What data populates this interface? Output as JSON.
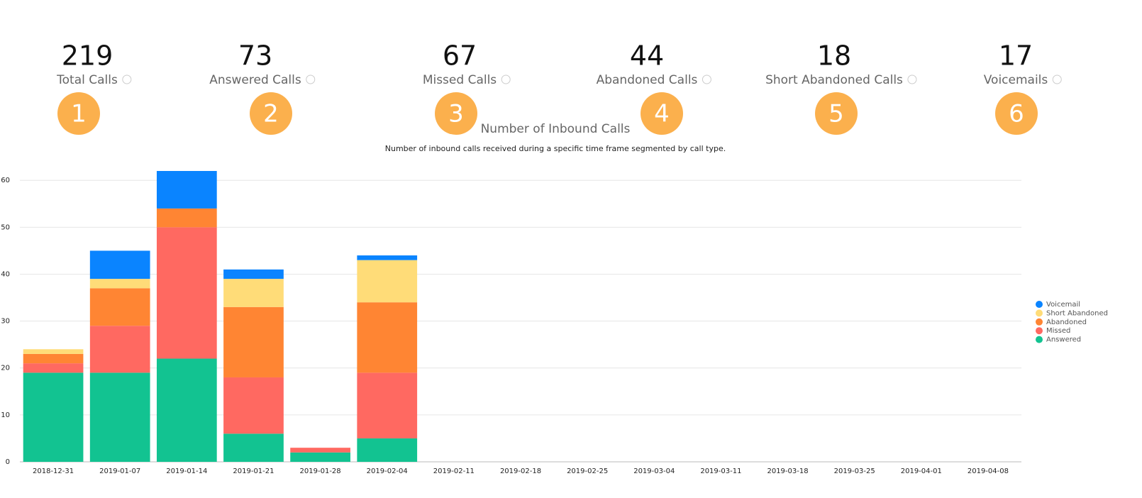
{
  "stats": [
    {
      "value": 219,
      "label": "Total Calls",
      "marker": "1"
    },
    {
      "value": 73,
      "label": "Answered Calls",
      "marker": "2"
    },
    {
      "value": 67,
      "label": "Missed Calls",
      "marker": "3"
    },
    {
      "value": 44,
      "label": "Abandoned Calls",
      "marker": "4"
    },
    {
      "value": 18,
      "label": "Short Abandoned Calls",
      "marker": "5"
    },
    {
      "value": 17,
      "label": "Voicemails",
      "marker": "6"
    }
  ],
  "chart_data": {
    "type": "stacked_bar",
    "title": "Number of Inbound Calls",
    "subtitle": "Number of inbound calls received during a specific time frame segmented by call type.",
    "categories": [
      "2018-12-31",
      "2019-01-07",
      "2019-01-14",
      "2019-01-21",
      "2019-01-28",
      "2019-02-04",
      "2019-02-11",
      "2019-02-18",
      "2019-02-25",
      "2019-03-04",
      "2019-03-11",
      "2019-03-18",
      "2019-03-25",
      "2019-04-01",
      "2019-04-08"
    ],
    "series": [
      {
        "name": "Answered",
        "color": "#12c391",
        "values": [
          19,
          19,
          22,
          6,
          2,
          5,
          0,
          0,
          0,
          0,
          0,
          0,
          0,
          0,
          0
        ]
      },
      {
        "name": "Missed",
        "color": "#ff6961",
        "values": [
          2,
          10,
          28,
          12,
          1,
          14,
          0,
          0,
          0,
          0,
          0,
          0,
          0,
          0,
          0
        ]
      },
      {
        "name": "Abandoned",
        "color": "#ff8533",
        "values": [
          2,
          8,
          4,
          15,
          0,
          15,
          0,
          0,
          0,
          0,
          0,
          0,
          0,
          0,
          0
        ]
      },
      {
        "name": "Short Abandoned",
        "color": "#ffdc78",
        "values": [
          1,
          2,
          0,
          6,
          0,
          9,
          0,
          0,
          0,
          0,
          0,
          0,
          0,
          0,
          0
        ]
      },
      {
        "name": "Voicemail",
        "color": "#0a84ff",
        "values": [
          0,
          6,
          8,
          2,
          0,
          1,
          0,
          0,
          0,
          0,
          0,
          0,
          0,
          0,
          0
        ]
      }
    ],
    "ylim": [
      0,
      62
    ],
    "yticks": [
      0,
      10,
      20,
      30,
      40,
      50,
      60
    ],
    "grid": true,
    "legend": "right"
  }
}
